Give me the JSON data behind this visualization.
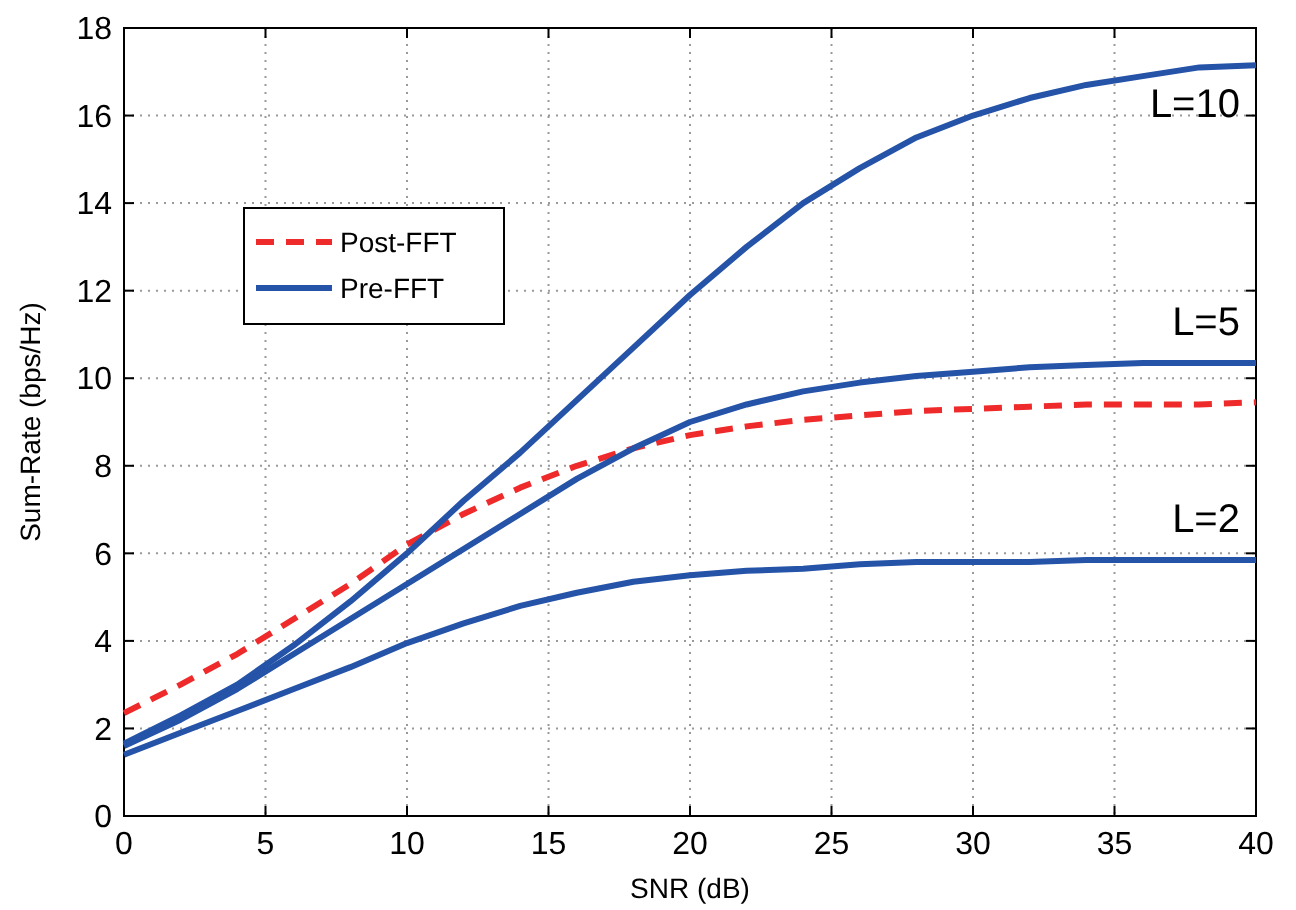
{
  "chart_data": {
    "type": "line",
    "xlabel": "SNR (dB)",
    "ylabel": "Sum-Rate (bps/Hz)",
    "x": [
      0,
      2,
      4,
      6,
      8,
      10,
      12,
      14,
      16,
      18,
      20,
      22,
      24,
      26,
      28,
      30,
      32,
      34,
      36,
      38,
      40
    ],
    "series": [
      {
        "name": "Post-FFT",
        "color": "#ee2a2a",
        "line_style": "dashed",
        "values": [
          2.35,
          3.0,
          3.7,
          4.5,
          5.3,
          6.2,
          6.9,
          7.5,
          8.0,
          8.4,
          8.7,
          8.9,
          9.05,
          9.15,
          9.25,
          9.3,
          9.35,
          9.4,
          9.4,
          9.4,
          9.45
        ]
      },
      {
        "name": "Pre-FFT",
        "color": "#2453a8",
        "line_style": "solid",
        "values": [
          1.65,
          2.3,
          3.0,
          3.9,
          4.9,
          6.0,
          7.2,
          8.3,
          9.5,
          10.7,
          11.9,
          13.0,
          14.0,
          14.8,
          15.5,
          16.0,
          16.4,
          16.7,
          16.9,
          17.1,
          17.15
        ]
      },
      {
        "color": "#2453a8",
        "line_style": "solid",
        "values": [
          1.6,
          2.2,
          2.9,
          3.7,
          4.5,
          5.3,
          6.1,
          6.9,
          7.7,
          8.4,
          9.0,
          9.4,
          9.7,
          9.9,
          10.05,
          10.15,
          10.25,
          10.3,
          10.35,
          10.35,
          10.35
        ]
      },
      {
        "color": "#2453a8",
        "line_style": "solid",
        "values": [
          1.4,
          1.9,
          2.4,
          2.9,
          3.4,
          3.95,
          4.4,
          4.8,
          5.1,
          5.35,
          5.5,
          5.6,
          5.65,
          5.75,
          5.8,
          5.8,
          5.8,
          5.85,
          5.85,
          5.85,
          5.85
        ]
      }
    ],
    "annotations": [
      "L=10",
      "L=5",
      "L=2"
    ],
    "xlim": [
      0,
      40
    ],
    "xticks": [
      0,
      5,
      10,
      15,
      20,
      25,
      30,
      35,
      40
    ],
    "ylim": [
      0,
      18
    ],
    "yticks": [
      0,
      2,
      4,
      6,
      8,
      10,
      12,
      14,
      16,
      18
    ],
    "grid": true,
    "legend": "top left",
    "marker": "none"
  }
}
